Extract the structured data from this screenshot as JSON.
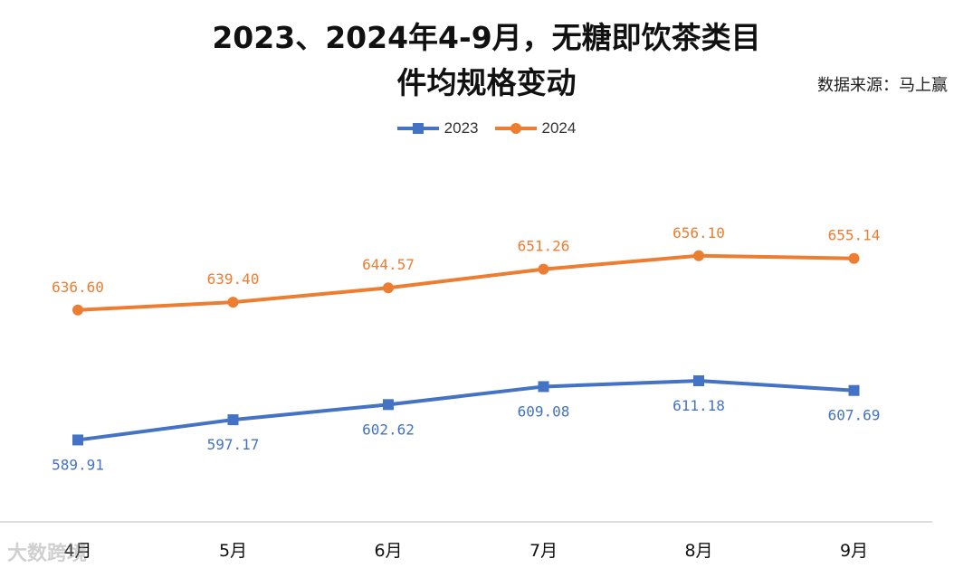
{
  "header": {
    "title_line1": "2023、2024年4-9月，无糖即饮茶类目",
    "title_line2": "件均规格变动",
    "source": "数据来源：马上赢"
  },
  "watermark": "大数跨境",
  "chart_data": {
    "type": "line",
    "title": "2023、2024年4-9月，无糖即饮茶类目件均规格变动",
    "categories": [
      "4月",
      "5月",
      "6月",
      "7月",
      "8月",
      "9月"
    ],
    "series": [
      {
        "name": "2023",
        "values": [
          589.91,
          597.17,
          602.62,
          609.08,
          611.18,
          607.69
        ],
        "labels": [
          "589.91",
          "597.17",
          "602.62",
          "609.08",
          "611.18",
          "607.69"
        ],
        "color": "#4472C4",
        "marker": "square",
        "label_position": "below"
      },
      {
        "name": "2024",
        "values": [
          636.6,
          639.4,
          644.57,
          651.26,
          656.1,
          655.14
        ],
        "labels": [
          "636.60",
          "639.40",
          "644.57",
          "651.26",
          "656.10",
          "655.14"
        ],
        "color": "#ED7D31",
        "marker": "circle",
        "label_position": "above"
      }
    ],
    "ylim": [
      566,
      683
    ],
    "grid": false,
    "legend": "top-center",
    "xlabel": "",
    "ylabel": ""
  }
}
